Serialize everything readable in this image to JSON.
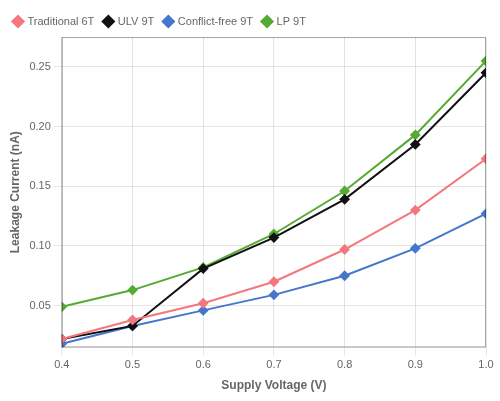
{
  "chart_data": {
    "type": "line",
    "xlabel": "Supply Voltage (V)",
    "ylabel": "Leakage Current (nA)",
    "x": [
      0.4,
      0.5,
      0.6,
      0.7,
      0.8,
      0.9,
      1.0
    ],
    "series": [
      {
        "name": "Traditional 6T",
        "color": "#F4777F",
        "marker": "diamond",
        "values": [
          0.022,
          0.038,
          0.052,
          0.07,
          0.097,
          0.13,
          0.173
        ]
      },
      {
        "name": "ULV 9T",
        "color": "#111111",
        "marker": "diamond",
        "values": [
          0.022,
          0.033,
          0.081,
          0.107,
          0.139,
          0.185,
          0.245
        ]
      },
      {
        "name": "Conflict-free 9T",
        "color": "#4477CC",
        "marker": "diamond",
        "values": [
          0.018,
          0.033,
          0.046,
          0.059,
          0.075,
          0.098,
          0.127
        ]
      },
      {
        "name": "LP 9T",
        "color": "#55AA33",
        "marker": "diamond",
        "values": [
          0.049,
          0.063,
          0.082,
          0.11,
          0.146,
          0.193,
          0.255
        ]
      }
    ],
    "xlim": [
      0.4,
      1.0
    ],
    "xticks": [
      0.4,
      0.5,
      0.6,
      0.7,
      0.8,
      0.9,
      {
        "value": 1.0,
        "label": "1.0"
      }
    ],
    "ylim": [
      0.015,
      0.275
    ],
    "yticks": [
      0.05,
      {
        "value": 0.1,
        "label": "0.10"
      },
      0.15,
      {
        "value": 0.2,
        "label": "0.20"
      },
      0.25
    ],
    "grid": true,
    "legend": "upper left"
  }
}
